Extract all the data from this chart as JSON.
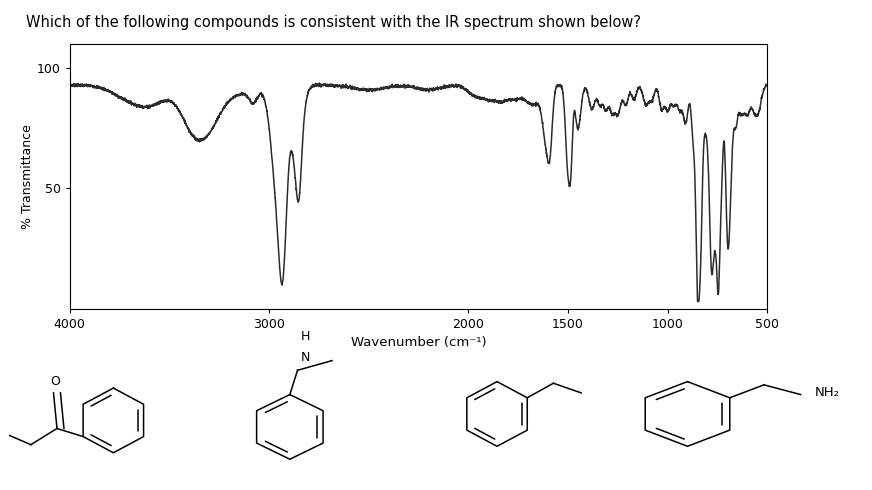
{
  "title": "Which of the following compounds is consistent with the IR spectrum shown below?",
  "title_color": "#000000",
  "title_fontsize": 10.5,
  "ylabel": "% Transmittance",
  "xlabel": "Wavenumber (cm⁻¹)",
  "yticks": [
    50,
    100
  ],
  "xticks": [
    4000,
    3000,
    2000,
    1500,
    1000,
    500
  ],
  "xmin": 4000,
  "xmax": 500,
  "ymin": 0,
  "ymax": 110,
  "background": "#ffffff",
  "spectrum_color": "#2c2c2c",
  "line_width": 1.1
}
